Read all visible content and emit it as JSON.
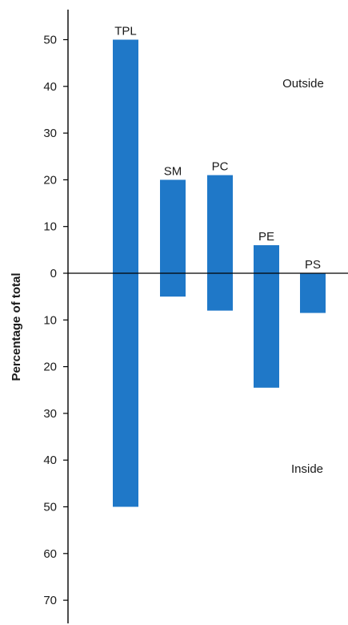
{
  "chart_data": {
    "type": "bar",
    "ylabel": "Percentage of total",
    "ylim": [
      -75,
      55
    ],
    "yticks": [
      {
        "value": 50,
        "label": "50"
      },
      {
        "value": 40,
        "label": "40"
      },
      {
        "value": 30,
        "label": "30"
      },
      {
        "value": 20,
        "label": "20"
      },
      {
        "value": 10,
        "label": "10"
      },
      {
        "value": 0,
        "label": "0"
      },
      {
        "value": -10,
        "label": "10"
      },
      {
        "value": -20,
        "label": "20"
      },
      {
        "value": -30,
        "label": "30"
      },
      {
        "value": -40,
        "label": "40"
      },
      {
        "value": -50,
        "label": "50"
      },
      {
        "value": -60,
        "label": "60"
      },
      {
        "value": -70,
        "label": "70"
      }
    ],
    "categories": [
      "TPL",
      "SM",
      "PC",
      "PE",
      "PS"
    ],
    "outside": [
      50,
      20,
      21,
      6,
      0
    ],
    "inside": [
      50,
      5,
      8,
      24.5,
      8.5
    ],
    "annotations": {
      "top": "Outside",
      "bottom": "Inside"
    },
    "grid": false,
    "colors": {
      "bar": "#1f78c8",
      "axis": "#000000"
    }
  }
}
